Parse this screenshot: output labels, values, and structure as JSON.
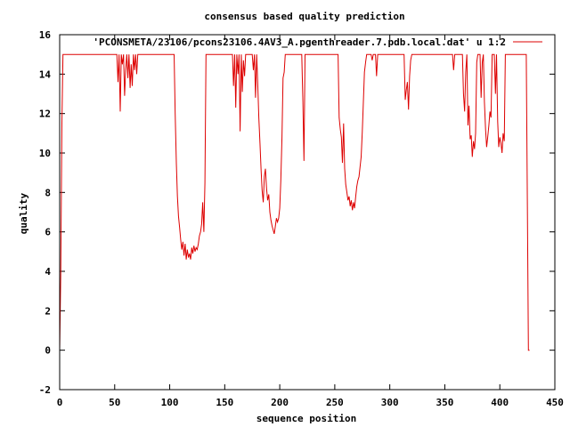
{
  "chart_data": {
    "type": "line",
    "title": "consensus based quality prediction",
    "xlabel": "sequence position",
    "ylabel": "quality",
    "xlim": [
      0,
      450
    ],
    "ylim": [
      -2,
      16
    ],
    "xticks": [
      0,
      50,
      100,
      150,
      200,
      250,
      300,
      350,
      400,
      450
    ],
    "yticks": [
      -2,
      0,
      2,
      4,
      6,
      8,
      10,
      12,
      14,
      16
    ],
    "grid": false,
    "legend_position": "top-right",
    "series": [
      {
        "name": "'PCONSMETA/23106/pcons23106.4AV3_A.pgenthreader.7.pdb.local.dat' u 1:2",
        "color": "#dd0000",
        "points": [
          [
            0,
            0
          ],
          [
            1,
            3.8
          ],
          [
            2,
            11.5
          ],
          [
            3,
            15
          ],
          [
            52,
            15
          ],
          [
            53,
            13.6
          ],
          [
            54,
            15
          ],
          [
            55,
            12.1
          ],
          [
            56,
            15
          ],
          [
            57,
            14.5
          ],
          [
            58,
            15
          ],
          [
            59,
            12.9
          ],
          [
            60,
            14.2
          ],
          [
            61,
            15
          ],
          [
            62,
            13.8
          ],
          [
            63,
            15
          ],
          [
            64,
            13.3
          ],
          [
            65,
            14.5
          ],
          [
            66,
            13.4
          ],
          [
            67,
            15
          ],
          [
            68,
            14.2
          ],
          [
            69,
            15
          ],
          [
            70,
            14
          ],
          [
            71,
            15
          ],
          [
            104,
            15
          ],
          [
            105,
            12
          ],
          [
            106,
            9.5
          ],
          [
            107,
            7.8
          ],
          [
            108,
            6.8
          ],
          [
            109,
            6.2
          ],
          [
            110,
            5.6
          ],
          [
            111,
            5.1
          ],
          [
            112,
            5.5
          ],
          [
            113,
            4.8
          ],
          [
            114,
            5.4
          ],
          [
            115,
            4.6
          ],
          [
            116,
            5.1
          ],
          [
            117,
            4.7
          ],
          [
            118,
            4.9
          ],
          [
            119,
            4.6
          ],
          [
            120,
            5.2
          ],
          [
            121,
            4.9
          ],
          [
            122,
            5.3
          ],
          [
            123,
            5.0
          ],
          [
            124,
            5.2
          ],
          [
            125,
            5.1
          ],
          [
            126,
            5.4
          ],
          [
            127,
            5.8
          ],
          [
            128,
            6.0
          ],
          [
            129,
            6.4
          ],
          [
            130,
            7.5
          ],
          [
            131,
            6.0
          ],
          [
            132,
            8.5
          ],
          [
            133,
            15
          ],
          [
            157,
            15
          ],
          [
            158,
            13.4
          ],
          [
            159,
            15
          ],
          [
            160,
            12.3
          ],
          [
            161,
            15
          ],
          [
            162,
            14
          ],
          [
            163,
            15
          ],
          [
            164,
            11.1
          ],
          [
            165,
            15
          ],
          [
            166,
            13.1
          ],
          [
            167,
            14.7
          ],
          [
            168,
            13.9
          ],
          [
            169,
            15
          ],
          [
            175,
            15
          ],
          [
            176,
            14.2
          ],
          [
            177,
            15
          ],
          [
            178,
            12.8
          ],
          [
            179,
            15
          ],
          [
            180,
            13.5
          ],
          [
            181,
            11.8
          ],
          [
            182,
            10.5
          ],
          [
            183,
            9.2
          ],
          [
            184,
            8.1
          ],
          [
            185,
            7.5
          ],
          [
            186,
            8.8
          ],
          [
            187,
            9.2
          ],
          [
            188,
            8.2
          ],
          [
            189,
            7.6
          ],
          [
            190,
            7.9
          ],
          [
            191,
            7.0
          ],
          [
            192,
            6.6
          ],
          [
            193,
            6.3
          ],
          [
            194,
            6.1
          ],
          [
            195,
            5.9
          ],
          [
            196,
            6.3
          ],
          [
            197,
            6.7
          ],
          [
            198,
            6.5
          ],
          [
            199,
            6.7
          ],
          [
            200,
            7.2
          ],
          [
            201,
            8.6
          ],
          [
            202,
            10.8
          ],
          [
            203,
            13.8
          ],
          [
            204,
            14.1
          ],
          [
            205,
            15
          ],
          [
            220,
            15
          ],
          [
            221,
            12.6
          ],
          [
            222,
            9.6
          ],
          [
            223,
            15
          ],
          [
            253,
            15
          ],
          [
            254,
            11.8
          ],
          [
            255,
            11.2
          ],
          [
            256,
            10.8
          ],
          [
            257,
            9.5
          ],
          [
            258,
            11.5
          ],
          [
            259,
            9.2
          ],
          [
            260,
            8.4
          ],
          [
            261,
            8.0
          ],
          [
            262,
            7.6
          ],
          [
            263,
            7.8
          ],
          [
            264,
            7.3
          ],
          [
            265,
            7.6
          ],
          [
            266,
            7.1
          ],
          [
            267,
            7.5
          ],
          [
            268,
            7.2
          ],
          [
            269,
            7.8
          ],
          [
            270,
            8.3
          ],
          [
            271,
            8.6
          ],
          [
            272,
            8.8
          ],
          [
            273,
            9.3
          ],
          [
            274,
            9.8
          ],
          [
            275,
            11.1
          ],
          [
            276,
            12.6
          ],
          [
            277,
            14.1
          ],
          [
            278,
            14.6
          ],
          [
            279,
            15
          ],
          [
            283,
            15
          ],
          [
            284,
            14.7
          ],
          [
            285,
            15
          ],
          [
            287,
            15
          ],
          [
            288,
            13.9
          ],
          [
            289,
            15
          ],
          [
            313,
            15
          ],
          [
            314,
            12.7
          ],
          [
            315,
            13.2
          ],
          [
            316,
            13.6
          ],
          [
            317,
            12.2
          ],
          [
            318,
            13.9
          ],
          [
            319,
            14.7
          ],
          [
            320,
            15
          ],
          [
            357,
            15
          ],
          [
            358,
            14.2
          ],
          [
            359,
            15
          ],
          [
            366,
            15
          ],
          [
            367,
            13.0
          ],
          [
            368,
            12.1
          ],
          [
            369,
            14.1
          ],
          [
            370,
            15
          ],
          [
            371,
            11.4
          ],
          [
            372,
            12.4
          ],
          [
            373,
            10.7
          ],
          [
            374,
            10.9
          ],
          [
            375,
            9.8
          ],
          [
            376,
            10.6
          ],
          [
            377,
            10.2
          ],
          [
            378,
            11.0
          ],
          [
            379,
            14.6
          ],
          [
            380,
            15
          ],
          [
            382,
            15
          ],
          [
            383,
            12.8
          ],
          [
            384,
            14.6
          ],
          [
            385,
            15
          ],
          [
            386,
            12.6
          ],
          [
            387,
            11.2
          ],
          [
            388,
            10.3
          ],
          [
            389,
            10.8
          ],
          [
            390,
            11.4
          ],
          [
            391,
            12.1
          ],
          [
            392,
            11.8
          ],
          [
            393,
            15
          ],
          [
            395,
            15
          ],
          [
            396,
            13.0
          ],
          [
            397,
            15
          ],
          [
            398,
            11.6
          ],
          [
            399,
            10.3
          ],
          [
            400,
            10.8
          ],
          [
            401,
            10.5
          ],
          [
            402,
            10.0
          ],
          [
            403,
            11.0
          ],
          [
            404,
            10.6
          ],
          [
            405,
            15
          ],
          [
            424,
            15
          ],
          [
            425,
            7.6
          ],
          [
            426,
            0
          ],
          [
            427,
            0
          ]
        ]
      }
    ]
  }
}
